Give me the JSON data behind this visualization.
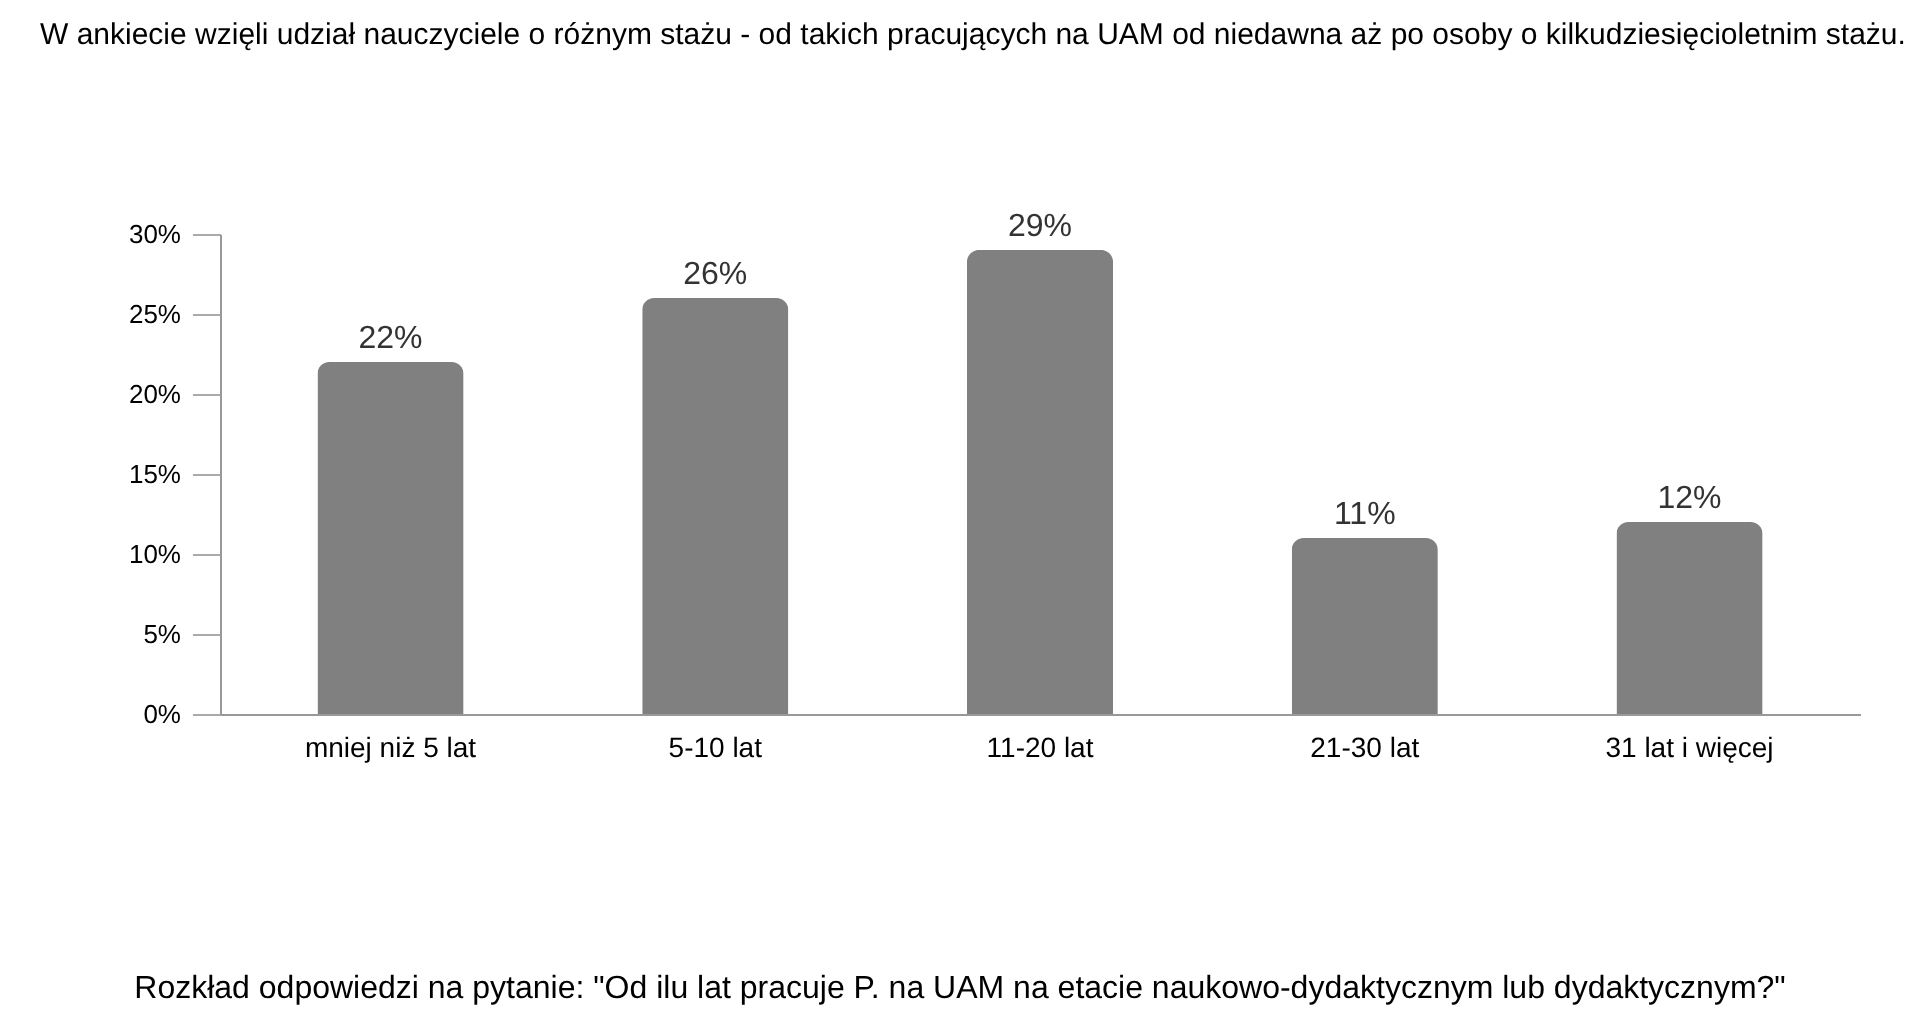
{
  "chart_data": {
    "type": "bar",
    "title": "W ankiecie wzięli udział nauczyciele o różnym stażu - od takich pracujących na UAM od niedawna aż po osoby o kilkudziesięcioletnim stażu.",
    "categories": [
      "mniej niż 5 lat",
      "5-10 lat",
      "11-20 lat",
      "21-30 lat",
      "31 lat i więcej"
    ],
    "values": [
      22,
      26,
      29,
      11,
      12
    ],
    "value_labels": [
      "22%",
      "26%",
      "29%",
      "11%",
      "12%"
    ],
    "color": "#808080",
    "ylim": [
      0,
      30
    ],
    "yticks": [
      {
        "value": 0,
        "label": "0%"
      },
      {
        "value": 5,
        "label": "5%"
      },
      {
        "value": 10,
        "label": "10%"
      },
      {
        "value": 15,
        "label": "15%"
      },
      {
        "value": 20,
        "label": "20%"
      },
      {
        "value": 25,
        "label": "25%"
      },
      {
        "value": 30,
        "label": "30%"
      }
    ],
    "grid": false,
    "annotations": [
      "Rozkład odpowiedzi na pytanie: \"Od ilu lat pracuje P. na UAM na etacie naukowo-dydaktycznym lub dydaktycznym?\""
    ]
  }
}
